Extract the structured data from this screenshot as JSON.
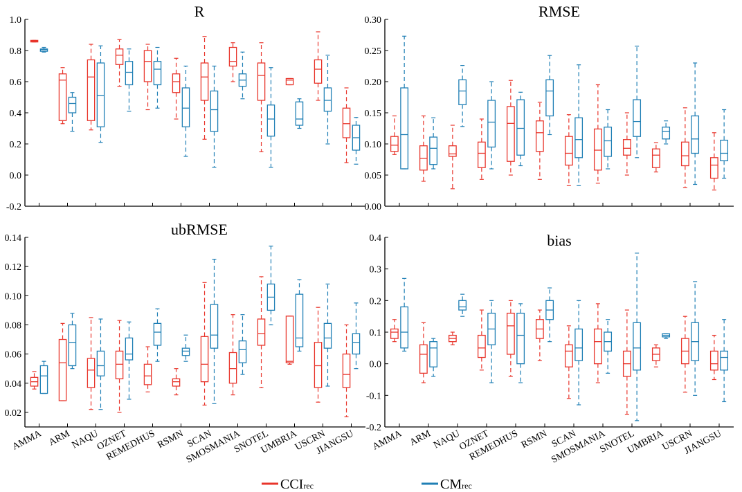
{
  "colors": {
    "cci": "#e8352b",
    "cm": "#1f7fb5",
    "axis": "#000000"
  },
  "legend": {
    "cci": {
      "main": "CCI",
      "sub": "rec"
    },
    "cm": {
      "main": "CM",
      "sub": "rec"
    }
  },
  "chart_data": [
    {
      "type": "boxplot",
      "title": "R",
      "ylim": [
        -0.2,
        1.0
      ],
      "yticks": [
        "-0.2",
        "0.0",
        "0.2",
        "0.4",
        "0.6",
        "0.8",
        "1.0"
      ],
      "categories": [
        "AMMA",
        "ARM",
        "NAQU",
        "OZNET",
        "REMEDHUS",
        "RSMN",
        "SCAN",
        "SMOSMANIA",
        "SNOTEL",
        "UMBRIA",
        "USCRN",
        "JIANGSU"
      ],
      "series": [
        {
          "name": "CCIrec",
          "boxes": [
            [
              0.855,
              0.855,
              0.86,
              0.865,
              0.865
            ],
            [
              0.33,
              0.35,
              0.61,
              0.65,
              0.69
            ],
            [
              0.29,
              0.35,
              0.63,
              0.74,
              0.84
            ],
            [
              0.57,
              0.71,
              0.77,
              0.81,
              0.87
            ],
            [
              0.42,
              0.6,
              0.73,
              0.8,
              0.84
            ],
            [
              0.36,
              0.53,
              0.6,
              0.65,
              0.75
            ],
            [
              0.23,
              0.48,
              0.63,
              0.72,
              0.89
            ],
            [
              0.6,
              0.7,
              0.73,
              0.82,
              0.85
            ],
            [
              0.15,
              0.48,
              0.64,
              0.72,
              0.85
            ],
            [
              0.58,
              0.58,
              0.61,
              0.62,
              0.62
            ],
            [
              0.48,
              0.59,
              0.68,
              0.74,
              0.92
            ],
            [
              0.08,
              0.24,
              0.33,
              0.43,
              0.56
            ]
          ]
        },
        {
          "name": "CMrec",
          "boxes": [
            [
              0.79,
              0.795,
              0.805,
              0.81,
              0.82
            ],
            [
              0.28,
              0.4,
              0.46,
              0.5,
              0.53
            ],
            [
              0.21,
              0.31,
              0.51,
              0.72,
              0.83
            ],
            [
              0.41,
              0.58,
              0.66,
              0.73,
              0.81
            ],
            [
              0.43,
              0.58,
              0.68,
              0.73,
              0.82
            ],
            [
              0.12,
              0.31,
              0.43,
              0.56,
              0.7
            ],
            [
              0.05,
              0.28,
              0.42,
              0.54,
              0.7
            ],
            [
              0.49,
              0.57,
              0.61,
              0.65,
              0.79
            ],
            [
              0.05,
              0.25,
              0.36,
              0.45,
              0.69
            ],
            [
              0.3,
              0.32,
              0.36,
              0.47,
              0.49
            ],
            [
              0.2,
              0.41,
              0.48,
              0.56,
              0.77
            ],
            [
              0.07,
              0.16,
              0.24,
              0.32,
              0.37
            ]
          ]
        }
      ]
    },
    {
      "type": "boxplot",
      "title": "RMSE",
      "ylim": [
        0.0,
        0.3
      ],
      "yticks": [
        "0.00",
        "0.05",
        "0.10",
        "0.15",
        "0.20",
        "0.25",
        "0.30"
      ],
      "categories": [
        "AMMA",
        "ARM",
        "NAQU",
        "OZNET",
        "REMEDHUS",
        "RSMN",
        "SCAN",
        "SMOSMANIA",
        "SNOTEL",
        "UMBRIA",
        "USCRN",
        "JIANGSU"
      ],
      "series": [
        {
          "name": "CCIrec",
          "boxes": [
            [
              0.083,
              0.088,
              0.098,
              0.112,
              0.145
            ],
            [
              0.04,
              0.058,
              0.077,
              0.097,
              0.145
            ],
            [
              0.028,
              0.08,
              0.084,
              0.097,
              0.13
            ],
            [
              0.043,
              0.062,
              0.085,
              0.103,
              0.14
            ],
            [
              0.05,
              0.072,
              0.133,
              0.16,
              0.202
            ],
            [
              0.043,
              0.088,
              0.118,
              0.137,
              0.167
            ],
            [
              0.033,
              0.066,
              0.085,
              0.112,
              0.147
            ],
            [
              0.037,
              0.058,
              0.09,
              0.124,
              0.195
            ],
            [
              0.05,
              0.082,
              0.093,
              0.107,
              0.15
            ],
            [
              0.055,
              0.062,
              0.082,
              0.092,
              0.102
            ],
            [
              0.03,
              0.065,
              0.081,
              0.103,
              0.158
            ],
            [
              0.026,
              0.045,
              0.066,
              0.078,
              0.118
            ]
          ]
        },
        {
          "name": "CMrec",
          "boxes": [
            [
              0.06,
              0.06,
              0.115,
              0.19,
              0.273
            ],
            [
              0.06,
              0.067,
              0.093,
              0.111,
              0.142
            ],
            [
              0.128,
              0.163,
              0.185,
              0.203,
              0.226
            ],
            [
              0.06,
              0.095,
              0.135,
              0.17,
              0.2
            ],
            [
              0.065,
              0.082,
              0.125,
              0.171,
              0.183
            ],
            [
              0.115,
              0.145,
              0.185,
              0.203,
              0.242
            ],
            [
              0.033,
              0.078,
              0.107,
              0.142,
              0.227
            ],
            [
              0.06,
              0.08,
              0.105,
              0.127,
              0.155
            ],
            [
              0.078,
              0.112,
              0.136,
              0.171,
              0.257
            ],
            [
              0.1,
              0.108,
              0.12,
              0.127,
              0.137
            ],
            [
              0.035,
              0.085,
              0.108,
              0.145,
              0.23
            ],
            [
              0.045,
              0.073,
              0.085,
              0.106,
              0.155
            ]
          ]
        }
      ]
    },
    {
      "type": "boxplot",
      "title": "ubRMSE",
      "ylim": [
        0.01,
        0.14
      ],
      "yticks": [
        "0.02",
        "0.04",
        "0.06",
        "0.08",
        "0.10",
        "0.12",
        "0.14"
      ],
      "tickvals": [
        0.02,
        0.04,
        0.06,
        0.08,
        0.1,
        0.12,
        0.14
      ],
      "categories": [
        "AMMA",
        "ARM",
        "NAQU",
        "OZNET",
        "REMEDHUS",
        "RSMN",
        "SCAN",
        "SMOSMANIA",
        "SNOTEL",
        "UMBRIA",
        "USCRN",
        "JIANGSU"
      ],
      "series": [
        {
          "name": "CCIrec",
          "boxes": [
            [
              0.036,
              0.038,
              0.041,
              0.044,
              0.048
            ],
            [
              0.028,
              0.028,
              0.054,
              0.07,
              0.081
            ],
            [
              0.022,
              0.037,
              0.049,
              0.057,
              0.085
            ],
            [
              0.02,
              0.043,
              0.053,
              0.062,
              0.083
            ],
            [
              0.034,
              0.039,
              0.045,
              0.053,
              0.065
            ],
            [
              0.032,
              0.038,
              0.041,
              0.043,
              0.05
            ],
            [
              0.025,
              0.041,
              0.053,
              0.072,
              0.109
            ],
            [
              0.032,
              0.04,
              0.05,
              0.061,
              0.087
            ],
            [
              0.037,
              0.066,
              0.074,
              0.084,
              0.113
            ],
            [
              0.053,
              0.054,
              0.055,
              0.086,
              0.086
            ],
            [
              0.027,
              0.037,
              0.052,
              0.068,
              0.092
            ],
            [
              0.017,
              0.037,
              0.046,
              0.06,
              0.08
            ]
          ]
        },
        {
          "name": "CMrec",
          "boxes": [
            [
              0.033,
              0.033,
              0.045,
              0.052,
              0.055
            ],
            [
              0.05,
              0.052,
              0.068,
              0.08,
              0.088
            ],
            [
              0.022,
              0.045,
              0.052,
              0.062,
              0.084
            ],
            [
              0.029,
              0.056,
              0.06,
              0.071,
              0.082
            ],
            [
              0.055,
              0.066,
              0.075,
              0.081,
              0.091
            ],
            [
              0.055,
              0.059,
              0.062,
              0.064,
              0.073
            ],
            [
              0.026,
              0.064,
              0.073,
              0.094,
              0.125
            ],
            [
              0.046,
              0.054,
              0.063,
              0.069,
              0.087
            ],
            [
              0.08,
              0.09,
              0.099,
              0.108,
              0.134
            ],
            [
              0.062,
              0.065,
              0.071,
              0.101,
              0.111
            ],
            [
              0.038,
              0.064,
              0.071,
              0.081,
              0.108
            ],
            [
              0.05,
              0.06,
              0.068,
              0.074,
              0.095
            ]
          ]
        }
      ]
    },
    {
      "type": "boxplot",
      "title": "bias",
      "ylim": [
        -0.2,
        0.4
      ],
      "yticks": [
        "-0.2",
        "-0.1",
        "0.0",
        "0.1",
        "0.2",
        "0.3",
        "0.4"
      ],
      "categories": [
        "AMMA",
        "ARM",
        "NAQU",
        "OZNET",
        "REMEDHUS",
        "RSMN",
        "SCAN",
        "SMOSMANIA",
        "SNOTEL",
        "UMBRIA",
        "USCRN",
        "JIANGSU"
      ],
      "series": [
        {
          "name": "CCIrec",
          "boxes": [
            [
              0.07,
              0.08,
              0.1,
              0.11,
              0.14
            ],
            [
              -0.06,
              -0.03,
              0.03,
              0.06,
              0.13
            ],
            [
              0.06,
              0.07,
              0.08,
              0.09,
              0.1
            ],
            [
              -0.02,
              0.02,
              0.05,
              0.09,
              0.17
            ],
            [
              -0.04,
              0.03,
              0.12,
              0.16,
              0.2
            ],
            [
              0.01,
              0.08,
              0.11,
              0.14,
              0.17
            ],
            [
              -0.11,
              -0.01,
              0.04,
              0.06,
              0.12
            ],
            [
              -0.06,
              0.0,
              0.07,
              0.11,
              0.19
            ],
            [
              -0.16,
              -0.04,
              0.0,
              0.04,
              0.17
            ],
            [
              -0.01,
              0.01,
              0.03,
              0.05,
              0.06
            ],
            [
              -0.09,
              0.0,
              0.04,
              0.08,
              0.15
            ],
            [
              -0.05,
              -0.02,
              0.0,
              0.04,
              0.09
            ]
          ]
        },
        {
          "name": "CMrec",
          "boxes": [
            [
              0.04,
              0.05,
              0.1,
              0.18,
              0.27
            ],
            [
              -0.04,
              -0.01,
              0.05,
              0.07,
              0.08
            ],
            [
              0.15,
              0.17,
              0.18,
              0.2,
              0.22
            ],
            [
              -0.06,
              0.06,
              0.11,
              0.16,
              0.2
            ],
            [
              -0.06,
              0.0,
              0.09,
              0.16,
              0.19
            ],
            [
              0.07,
              0.14,
              0.17,
              0.2,
              0.24
            ],
            [
              -0.13,
              0.01,
              0.05,
              0.11,
              0.2
            ],
            [
              -0.03,
              0.04,
              0.07,
              0.1,
              0.14
            ],
            [
              -0.18,
              -0.02,
              0.05,
              0.13,
              0.35
            ],
            [
              0.08,
              0.085,
              0.09,
              0.095,
              0.095
            ],
            [
              -0.1,
              0.01,
              0.07,
              0.13,
              0.26
            ],
            [
              -0.12,
              -0.02,
              0.02,
              0.04,
              0.14
            ]
          ]
        }
      ]
    }
  ]
}
